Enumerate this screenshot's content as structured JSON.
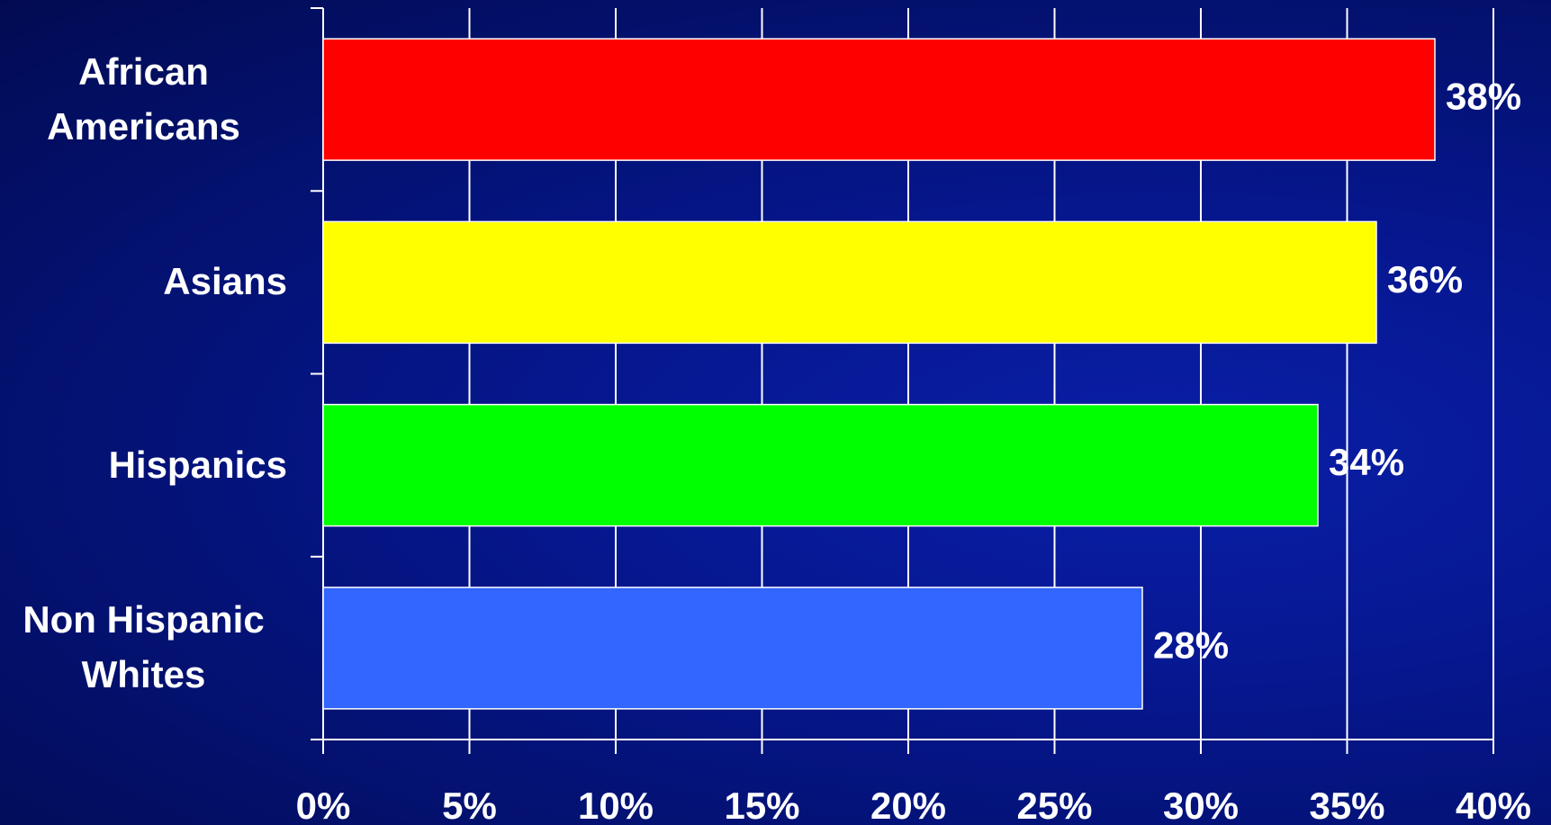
{
  "chart_data": {
    "type": "bar",
    "orientation": "horizontal",
    "categories": [
      "African Americans",
      "Asians",
      "Hispanics",
      "Non Hispanic Whites"
    ],
    "values": [
      38,
      36,
      34,
      28
    ],
    "value_labels": [
      "38%",
      "36%",
      "34%",
      "28%"
    ],
    "colors": [
      "#ff0000",
      "#ffff00",
      "#00ff00",
      "#3366ff"
    ],
    "xlim": [
      0,
      40
    ],
    "xticks": [
      {
        "value": 0,
        "label": "0%"
      },
      {
        "value": 5,
        "label": "5%"
      },
      {
        "value": 10,
        "label": "10%"
      },
      {
        "value": 15,
        "label": "15%"
      },
      {
        "value": 20,
        "label": "20%"
      },
      {
        "value": 25,
        "label": "25%"
      },
      {
        "value": 30,
        "label": "30%"
      },
      {
        "value": 35,
        "label": "35%"
      },
      {
        "value": 40,
        "label": "40%"
      }
    ],
    "grid": true
  }
}
